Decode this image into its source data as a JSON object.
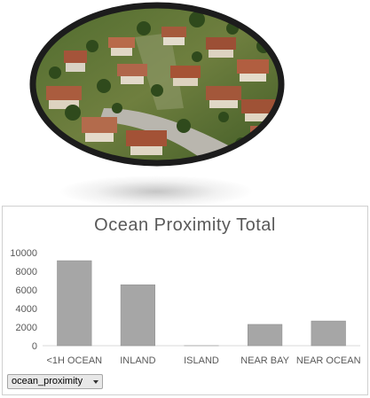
{
  "chart_data": {
    "type": "bar",
    "title": "Ocean Proximity Total",
    "categories": [
      "<1H OCEAN",
      "INLAND",
      "ISLAND",
      "NEAR BAY",
      "NEAR OCEAN"
    ],
    "values": [
      9136,
      6551,
      5,
      2290,
      2658
    ],
    "ylim": [
      0,
      10000
    ],
    "yticks": [
      "0",
      "2000",
      "4000",
      "6000",
      "8000",
      "10000"
    ],
    "grid": false,
    "bar_color": "#a6a6a6",
    "xlabel": "",
    "ylabel": ""
  },
  "filter": {
    "label": "ocean_proximity"
  },
  "photo": {
    "subject": "aerial-suburban-neighborhood"
  }
}
